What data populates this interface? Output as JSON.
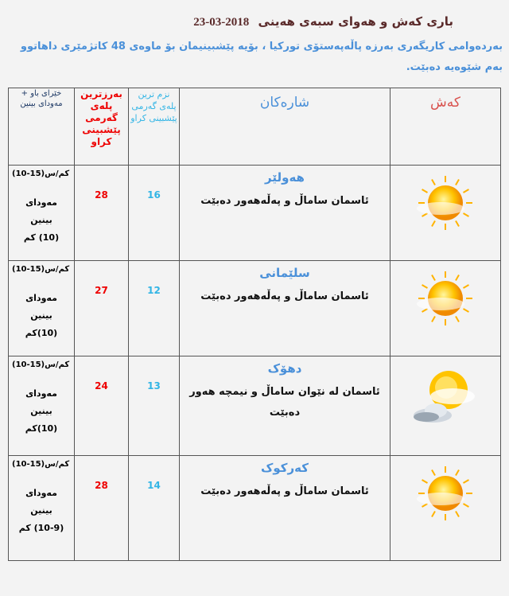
{
  "title": {
    "text": "باری کەش و هەوای سبەی هەینی",
    "date": "2018-03-23"
  },
  "intro": "بەردەوامی کاریگەری بەرزە پاڵەپەستۆی تورکیا ، بۆیە پێشبینیمان بۆ ماوەی 48 کاتژمێری داهاتوو بەم شێوەیە دەبێت.",
  "headers": {
    "weather": "کەش",
    "city": "شارەکان",
    "min": "نزم ترین پلەی گەرمی پێشبینی کراو",
    "max": "بەرزترین پلەی گەرمی پێشبینی کراو",
    "wind": "خێرای باو + مەودای بینین"
  },
  "rows": [
    {
      "city": "هەولێر",
      "desc": "ئاسمان ساماڵ و پەڵەهەور دەبێت",
      "min": "16",
      "max": "28",
      "wind_speed": "(10-15)کم/س",
      "visibility_label": "مەودای بینین",
      "visibility": "(10) کم",
      "icon": "sun-cloud-icon"
    },
    {
      "city": "سلێمانی",
      "desc": "ئاسمان ساماڵ و پەڵەهەور دەبێت",
      "min": "12",
      "max": "27",
      "wind_speed": "(10-15)کم/س",
      "visibility_label": "مەودای بینین",
      "visibility": "(10)کم",
      "icon": "sun-cloud-icon"
    },
    {
      "city": "دهۆک",
      "desc": "ئاسمان لە نێوان ساماڵ و نیمچە هەور دەبێت",
      "min": "13",
      "max": "24",
      "wind_speed": "(10-15)کم/س",
      "visibility_label": "مەودای بینین",
      "visibility": "(10)کم",
      "icon": "partly-cloudy-icon"
    },
    {
      "city": "کەرکوک",
      "desc": "ئاسمان ساماڵ و پەڵەهەور دەبێت",
      "min": "14",
      "max": "28",
      "wind_speed": "(10-15)کم/س",
      "visibility_label": "مەودای بینین",
      "visibility": "(10-9) کم",
      "icon": "sun-cloud-icon"
    }
  ]
}
